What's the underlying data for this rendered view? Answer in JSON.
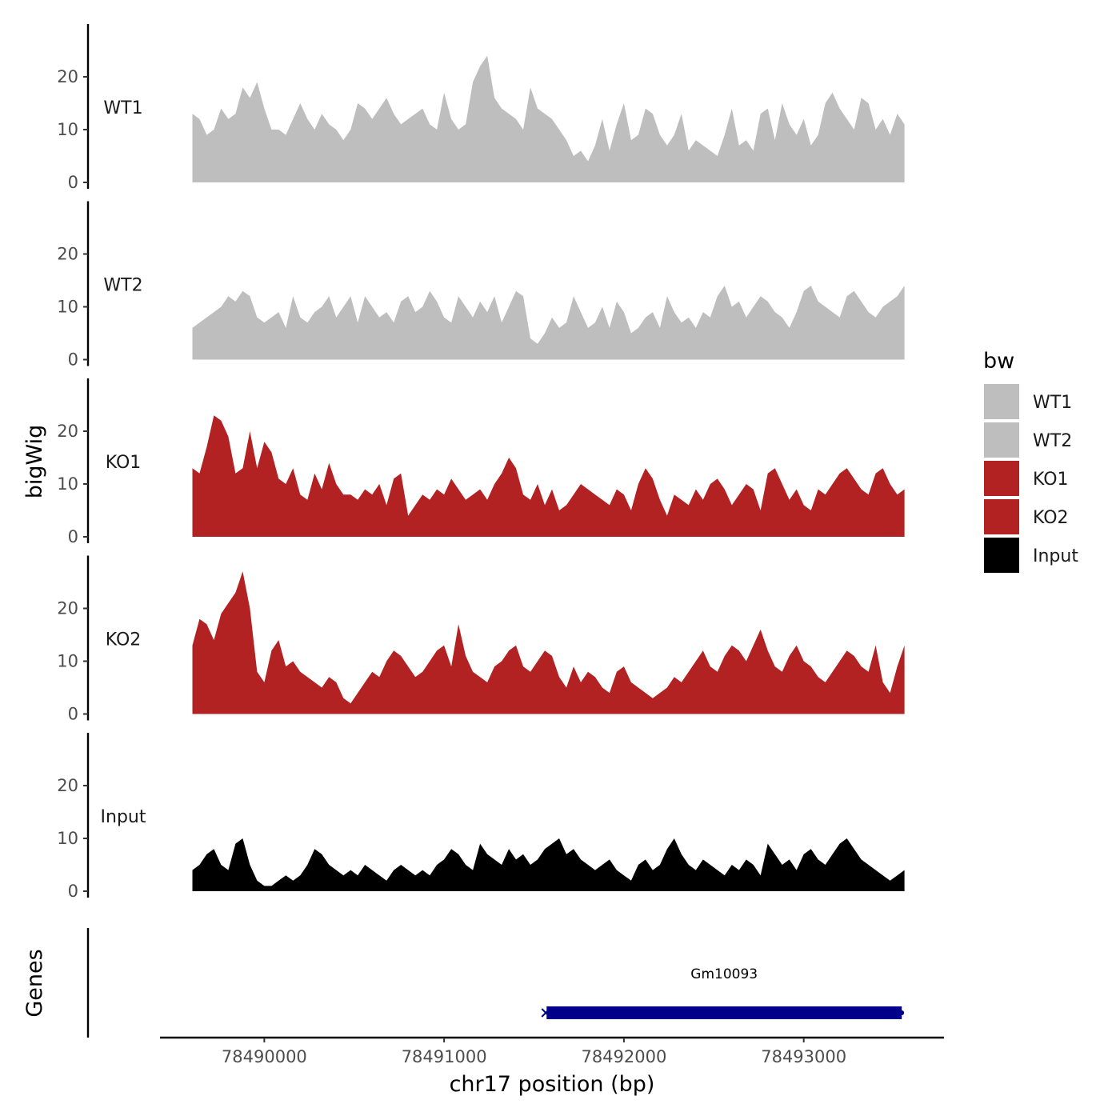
{
  "chart_data": {
    "type": "area",
    "xlabel": "chr17 position (bp)",
    "ylabel": "bigWig",
    "genes_label": "Genes",
    "legend_title": "bw",
    "xlim": [
      78489420,
      78493780
    ],
    "ylim": [
      0,
      30
    ],
    "yticks": [
      0,
      10,
      20
    ],
    "xticks": [
      78490000,
      78491000,
      78492000,
      78493000
    ],
    "x": [
      78489600,
      78489640,
      78489680,
      78489720,
      78489760,
      78489800,
      78489840,
      78489880,
      78489920,
      78489960,
      78490000,
      78490040,
      78490080,
      78490120,
      78490160,
      78490200,
      78490240,
      78490280,
      78490320,
      78490360,
      78490400,
      78490440,
      78490480,
      78490520,
      78490560,
      78490600,
      78490640,
      78490680,
      78490720,
      78490760,
      78490800,
      78490840,
      78490880,
      78490920,
      78490960,
      78491000,
      78491040,
      78491080,
      78491120,
      78491160,
      78491200,
      78491240,
      78491280,
      78491320,
      78491360,
      78491400,
      78491440,
      78491480,
      78491520,
      78491560,
      78491600,
      78491640,
      78491680,
      78491720,
      78491760,
      78491800,
      78491840,
      78491880,
      78491920,
      78491960,
      78492000,
      78492040,
      78492080,
      78492120,
      78492160,
      78492200,
      78492240,
      78492280,
      78492320,
      78492360,
      78492400,
      78492440,
      78492480,
      78492520,
      78492560,
      78492600,
      78492640,
      78492680,
      78492720,
      78492760,
      78492800,
      78492840,
      78492880,
      78492920,
      78492960,
      78493000,
      78493040,
      78493080,
      78493120,
      78493160,
      78493200,
      78493240,
      78493280,
      78493320,
      78493360,
      78493400,
      78493440,
      78493480,
      78493520,
      78493560
    ],
    "series": [
      {
        "name": "WT1",
        "color": "#bebebe",
        "values": [
          13,
          12,
          9,
          10,
          14,
          12,
          13,
          18,
          16,
          19,
          14,
          10,
          10,
          9,
          12,
          15,
          12,
          10,
          13,
          11,
          10,
          8,
          10,
          15,
          14,
          12,
          14,
          16,
          13,
          11,
          12,
          13,
          14,
          11,
          10,
          17,
          12,
          10,
          11,
          19,
          22,
          24,
          16,
          14,
          13,
          12,
          10,
          18,
          14,
          13,
          12,
          10,
          8,
          5,
          6,
          4,
          7,
          12,
          6,
          11,
          15,
          8,
          9,
          14,
          13,
          9,
          7,
          9,
          13,
          6,
          8,
          7,
          6,
          5,
          9,
          14,
          7,
          8,
          6,
          13,
          14,
          8,
          15,
          11,
          9,
          12,
          7,
          9,
          15,
          17,
          14,
          12,
          10,
          16,
          15,
          10,
          12,
          9,
          13,
          11
        ]
      },
      {
        "name": "WT2",
        "color": "#bebebe",
        "values": [
          6,
          7,
          8,
          9,
          10,
          12,
          11,
          13,
          12,
          8,
          7,
          8,
          9,
          6,
          12,
          8,
          7,
          9,
          10,
          12,
          8,
          10,
          12,
          7,
          12,
          10,
          8,
          9,
          7,
          11,
          12,
          9,
          10,
          13,
          11,
          8,
          7,
          12,
          10,
          8,
          11,
          9,
          12,
          7,
          10,
          13,
          12,
          4,
          3,
          5,
          8,
          6,
          7,
          12,
          9,
          6,
          7,
          10,
          6,
          11,
          9,
          5,
          6,
          8,
          9,
          6,
          12,
          9,
          7,
          8,
          6,
          9,
          8,
          12,
          14,
          10,
          11,
          8,
          10,
          12,
          11,
          9,
          8,
          6,
          9,
          13,
          14,
          11,
          10,
          9,
          8,
          12,
          13,
          11,
          9,
          8,
          10,
          11,
          12,
          14
        ]
      },
      {
        "name": "KO1",
        "color": "#b22222",
        "values": [
          13,
          12,
          17,
          23,
          22,
          19,
          12,
          13,
          20,
          13,
          18,
          16,
          11,
          10,
          13,
          8,
          7,
          12,
          9,
          14,
          10,
          8,
          8,
          7,
          9,
          8,
          10,
          6,
          11,
          12,
          4,
          6,
          8,
          7,
          9,
          8,
          11,
          9,
          7,
          8,
          9,
          7,
          10,
          12,
          15,
          13,
          8,
          7,
          10,
          6,
          9,
          5,
          6,
          8,
          10,
          9,
          8,
          7,
          6,
          9,
          8,
          5,
          10,
          13,
          11,
          7,
          4,
          8,
          7,
          6,
          9,
          7,
          10,
          11,
          9,
          6,
          8,
          10,
          9,
          5,
          12,
          13,
          10,
          7,
          9,
          6,
          5,
          9,
          8,
          10,
          12,
          13,
          11,
          9,
          8,
          12,
          13,
          10,
          8,
          9
        ]
      },
      {
        "name": "KO2",
        "color": "#b22222",
        "values": [
          13,
          18,
          17,
          14,
          19,
          21,
          23,
          27,
          20,
          8,
          6,
          12,
          14,
          9,
          10,
          8,
          7,
          6,
          5,
          7,
          6,
          3,
          2,
          4,
          6,
          8,
          7,
          10,
          12,
          11,
          9,
          7,
          8,
          10,
          12,
          13,
          9,
          17,
          11,
          8,
          7,
          6,
          9,
          10,
          12,
          13,
          9,
          8,
          10,
          12,
          11,
          7,
          5,
          9,
          6,
          8,
          7,
          5,
          4,
          8,
          9,
          6,
          5,
          4,
          3,
          4,
          5,
          7,
          6,
          8,
          10,
          12,
          9,
          8,
          11,
          13,
          12,
          10,
          13,
          16,
          12,
          9,
          8,
          11,
          13,
          10,
          9,
          7,
          6,
          8,
          10,
          12,
          11,
          9,
          8,
          13,
          6,
          4,
          9,
          13
        ]
      },
      {
        "name": "Input",
        "color": "#000000",
        "values": [
          4,
          5,
          7,
          8,
          5,
          4,
          9,
          10,
          5,
          2,
          1,
          1,
          2,
          3,
          2,
          3,
          5,
          8,
          7,
          5,
          4,
          3,
          4,
          3,
          5,
          4,
          3,
          2,
          4,
          5,
          4,
          3,
          4,
          3,
          5,
          6,
          8,
          7,
          5,
          4,
          9,
          7,
          6,
          5,
          8,
          6,
          7,
          5,
          6,
          8,
          9,
          10,
          7,
          8,
          6,
          5,
          4,
          5,
          6,
          4,
          3,
          2,
          5,
          6,
          4,
          5,
          8,
          10,
          7,
          5,
          4,
          6,
          5,
          4,
          3,
          5,
          4,
          6,
          5,
          3,
          9,
          7,
          5,
          6,
          4,
          7,
          8,
          6,
          5,
          7,
          9,
          10,
          8,
          6,
          5,
          4,
          3,
          2,
          3,
          4
        ]
      }
    ],
    "genes": [
      {
        "name": "Gm10093",
        "start": 78491570,
        "end": 78493545,
        "strand": "-",
        "color": "#00008b"
      }
    ]
  }
}
